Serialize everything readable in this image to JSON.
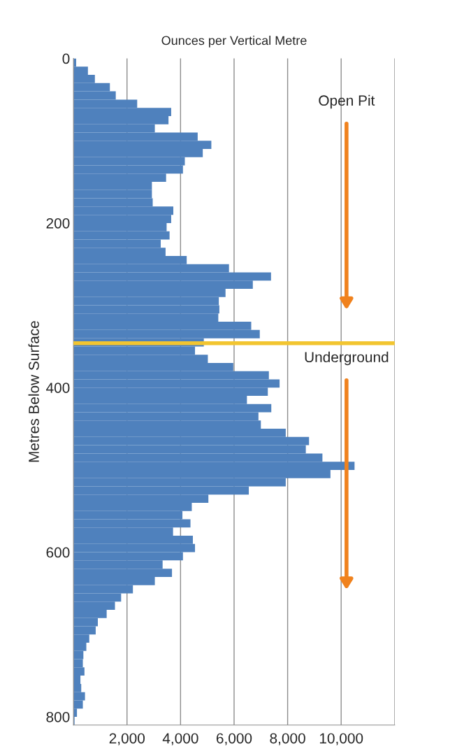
{
  "chart_data": {
    "type": "histogram",
    "orientation": "horizontal",
    "title": "Ounces per Vertical Metre",
    "ylabel": "Metres Below Surface",
    "bins": [
      0,
      10,
      20,
      30,
      40,
      50,
      60,
      70,
      80,
      90,
      100,
      110,
      120,
      130,
      140,
      150,
      160,
      170,
      180,
      190,
      200,
      210,
      220,
      230,
      240,
      250,
      260,
      270,
      280,
      290,
      300,
      310,
      320,
      330,
      340,
      350,
      360,
      370,
      380,
      390,
      400,
      410,
      420,
      430,
      440,
      450,
      460,
      470,
      480,
      490,
      500,
      510,
      520,
      530,
      540,
      550,
      560,
      570,
      580,
      590,
      600,
      610,
      620,
      630,
      640,
      650,
      660,
      670,
      680,
      690,
      700,
      710,
      720,
      730,
      740,
      750,
      760,
      770,
      780,
      790,
      800,
      810
    ],
    "values": [
      100,
      540,
      800,
      1360,
      1580,
      2380,
      3650,
      3550,
      3040,
      4640,
      5150,
      4830,
      4160,
      4090,
      3460,
      2930,
      2930,
      2960,
      3730,
      3650,
      3480,
      3590,
      3260,
      3440,
      4230,
      5810,
      7380,
      6700,
      5680,
      5430,
      5450,
      5410,
      6640,
      6960,
      4870,
      4540,
      5020,
      5970,
      7300,
      7700,
      7260,
      6480,
      7390,
      6910,
      7000,
      7930,
      8800,
      8680,
      9300,
      10500,
      9600,
      7930,
      6550,
      5040,
      4420,
      4070,
      4370,
      3720,
      4460,
      4540,
      4090,
      3330,
      3680,
      3040,
      2220,
      1780,
      1550,
      1240,
      910,
      830,
      590,
      480,
      370,
      350,
      410,
      260,
      290,
      430,
      350,
      130,
      40
    ],
    "color": "#4f81bd",
    "xlim": [
      0,
      12000
    ],
    "xticks": [
      {
        "value": 0,
        "label": null
      },
      {
        "value": 2000,
        "label": "2,000"
      },
      {
        "value": 4000,
        "label": "4,000"
      },
      {
        "value": 6000,
        "label": "6,000"
      },
      {
        "value": 8000,
        "label": "8,000"
      },
      {
        "value": 10000,
        "label": "10,000"
      },
      {
        "value": 12000,
        "label": null
      }
    ],
    "ylim": [
      810,
      0
    ],
    "yticks": [
      0,
      200,
      400,
      600,
      800
    ],
    "grid": "x",
    "ref_lines": [
      {
        "axis": "y",
        "value": 346,
        "color": "#f2c530"
      }
    ],
    "annotations": [
      "Open Pit",
      "Underground"
    ]
  }
}
